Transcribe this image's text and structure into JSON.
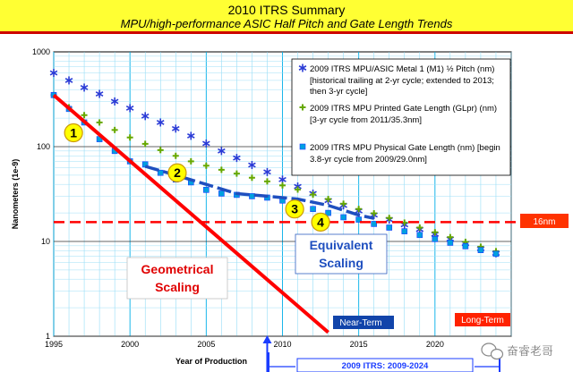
{
  "banner": {
    "title": "2010 ITRS Summary",
    "subtitle": "MPU/high-performance ASIC Half Pitch and Gate Length Trends"
  },
  "chart_data": {
    "type": "scatter",
    "title": "",
    "xlabel": "Year of Production",
    "ylabel": "Nanometers (1e-9)",
    "xlim": [
      1995,
      2025
    ],
    "ylim": [
      1,
      1000
    ],
    "yscale": "log",
    "x_ticks": [
      1995,
      2000,
      2005,
      2010,
      2015,
      2020
    ],
    "y_ticks": [
      1,
      10,
      100,
      1000
    ],
    "grid": true,
    "legend_position": "top-right",
    "series": [
      {
        "name": "2009 ITRS MPU/ASIC Metal 1 (M1) ½ Pitch (nm)",
        "note_lines": [
          "[historical trailing at 2-yr cycle; extended to 2013;",
          "then 3-yr cycle]"
        ],
        "marker": "asterisk",
        "color": "#2a3bd6",
        "x": [
          1995,
          1996,
          1997,
          1998,
          1999,
          2000,
          2001,
          2002,
          2003,
          2004,
          2005,
          2006,
          2007,
          2008,
          2009,
          2010,
          2011,
          2012,
          2013,
          2014,
          2015,
          2016,
          2017,
          2018,
          2019,
          2020,
          2021,
          2022,
          2023,
          2024
        ],
        "y": [
          600,
          500,
          420,
          360,
          300,
          255,
          210,
          180,
          155,
          130,
          108,
          90,
          76,
          64,
          54,
          45,
          38,
          32,
          27,
          24,
          21,
          19,
          17,
          15,
          13.4,
          11.9,
          10.6,
          9.5,
          8.4,
          7.5
        ]
      },
      {
        "name": "2009 ITRS MPU Printed Gate Length (GLpr) (nm)",
        "note_lines": [
          "[3-yr cycle from 2011/35.3nm]"
        ],
        "marker": "plus",
        "color": "#66a800",
        "x": [
          1995,
          1996,
          1997,
          1998,
          1999,
          2000,
          2001,
          2002,
          2003,
          2004,
          2005,
          2006,
          2007,
          2008,
          2009,
          2010,
          2011,
          2012,
          2013,
          2014,
          2015,
          2016,
          2017,
          2018,
          2019,
          2020,
          2021,
          2022,
          2023,
          2024
        ],
        "y": [
          350,
          260,
          215,
          180,
          150,
          125,
          107,
          92,
          80,
          70,
          63,
          57,
          52,
          47,
          43,
          39,
          35.3,
          31.2,
          28,
          25,
          22,
          19.8,
          17.7,
          15.8,
          14,
          12.5,
          11.1,
          9.9,
          8.8,
          7.9
        ]
      },
      {
        "name": "2009 ITRS MPU Physical Gate Length (nm) [begin",
        "note_lines": [
          "3.8-yr cycle from 2009/29.0nm]"
        ],
        "marker": "square",
        "color": "#00a0e0",
        "x": [
          1995,
          1996,
          1997,
          1998,
          1999,
          2000,
          2001,
          2002,
          2003,
          2004,
          2005,
          2006,
          2007,
          2008,
          2009,
          2010,
          2011,
          2012,
          2013,
          2014,
          2015,
          2016,
          2017,
          2018,
          2019,
          2020,
          2021,
          2022,
          2023,
          2024
        ],
        "y": [
          350,
          250,
          180,
          120,
          90,
          70,
          65,
          53,
          45,
          42,
          35,
          32,
          31,
          30,
          29,
          27,
          24,
          22,
          20,
          18,
          17,
          15.3,
          14,
          12.8,
          11.7,
          10.6,
          9.7,
          8.9,
          8.1,
          7.4
        ]
      }
    ],
    "overlays": {
      "geometrical_line": {
        "x": [
          1995,
          2013
        ],
        "y": [
          350,
          1.1
        ]
      },
      "equivalent_curve": {
        "x": [
          2001,
          2003,
          2005,
          2007,
          2009,
          2011,
          2013,
          2015,
          2016
        ],
        "y": [
          62,
          50,
          40,
          32,
          30,
          28,
          24,
          19,
          17.5
        ]
      },
      "limit_16nm_y": 16,
      "arrow_x": 2009,
      "callouts": [
        {
          "label": "1",
          "x": 1996.3,
          "y": 140
        },
        {
          "label": "2",
          "x": 2003.1,
          "y": 53
        },
        {
          "label": "3",
          "x": 2010.8,
          "y": 22
        },
        {
          "label": "4",
          "x": 2012.5,
          "y": 16
        }
      ]
    },
    "annotations": {
      "geometrical_scaling": [
        "Geometrical",
        "Scaling"
      ],
      "equivalent_scaling": [
        "Equivalent",
        "Scaling"
      ],
      "near_term": "Near-Term",
      "long_term": "Long-Term",
      "nm_limit": "16nm",
      "span": "2009 ITRS:  2009-2024"
    }
  },
  "watermark": {
    "text": "奋睿老哥",
    "icon": "wechat-icon"
  }
}
